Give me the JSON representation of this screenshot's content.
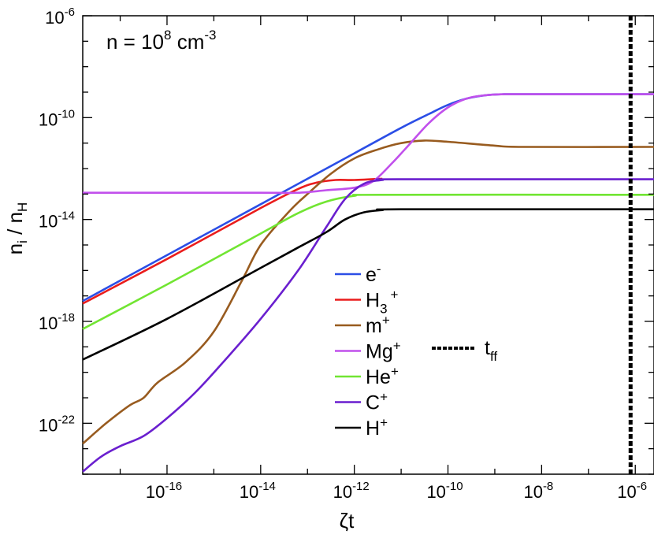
{
  "chart_data": {
    "type": "line",
    "title": "",
    "annotation": {
      "base": "n = 10",
      "exp": "8",
      "unit": " cm",
      "unit_exp": "-3"
    },
    "xlabel": "ζt",
    "ylabel": {
      "n": "n",
      "n_sub": "i",
      "slash": " / ",
      "h": "n",
      "h_sub": "H"
    },
    "x_scale": "log",
    "y_scale": "log",
    "xlim_log10": [
      -17.8,
      -5.6
    ],
    "ylim_log10": [
      -24,
      -6
    ],
    "x_ticks": [
      {
        "exp": -16,
        "base": "10",
        "sup": "-16"
      },
      {
        "exp": -14,
        "base": "10",
        "sup": "-14"
      },
      {
        "exp": -12,
        "base": "10",
        "sup": "-12"
      },
      {
        "exp": -10,
        "base": "10",
        "sup": "-10"
      },
      {
        "exp": -8,
        "base": "10",
        "sup": "-8"
      },
      {
        "exp": -6,
        "base": "10",
        "sup": "-6"
      }
    ],
    "y_ticks": [
      {
        "exp": -6,
        "base": "10",
        "sup": "-6"
      },
      {
        "exp": -10,
        "base": "10",
        "sup": "-10"
      },
      {
        "exp": -14,
        "base": "10",
        "sup": "-14"
      },
      {
        "exp": -18,
        "base": "10",
        "sup": "-18"
      },
      {
        "exp": -22,
        "base": "10",
        "sup": "-22"
      }
    ],
    "series": [
      {
        "name": "e-",
        "label": "e",
        "sup": "-",
        "sub": "",
        "color": "#2b4ee6",
        "points": [
          [
            -17.8,
            -17.2
          ],
          [
            -16,
            -15.4
          ],
          [
            -14,
            -13.4
          ],
          [
            -12,
            -11.4
          ],
          [
            -11,
            -10.4
          ],
          [
            -10.4,
            -9.85
          ],
          [
            -10,
            -9.5
          ],
          [
            -9.6,
            -9.25
          ],
          [
            -9.2,
            -9.12
          ],
          [
            -8.8,
            -9.08
          ],
          [
            -8.4,
            -9.08
          ],
          [
            -5.6,
            -9.08
          ]
        ]
      },
      {
        "name": "H3+",
        "label": "H",
        "sup": "+",
        "sub": "3",
        "color": "#ea1d1d",
        "points": [
          [
            -17.8,
            -17.3
          ],
          [
            -16,
            -15.55
          ],
          [
            -14,
            -13.55
          ],
          [
            -13.2,
            -12.8
          ],
          [
            -12.8,
            -12.55
          ],
          [
            -12.4,
            -12.45
          ],
          [
            -12,
            -12.45
          ],
          [
            -11.4,
            -12.4
          ]
        ]
      },
      {
        "name": "m+",
        "label": "m",
        "sup": "+",
        "sub": "",
        "color": "#985b1f",
        "points": [
          [
            -17.8,
            -22.8
          ],
          [
            -17.3,
            -22
          ],
          [
            -16.8,
            -21.3
          ],
          [
            -16.5,
            -21
          ],
          [
            -16.2,
            -20.4
          ],
          [
            -15.6,
            -19.6
          ],
          [
            -15,
            -18.4
          ],
          [
            -14.4,
            -16.4
          ],
          [
            -14,
            -15
          ],
          [
            -13.4,
            -13.7
          ],
          [
            -13,
            -13
          ],
          [
            -12.5,
            -12.2
          ],
          [
            -12,
            -11.6
          ],
          [
            -11.5,
            -11.25
          ],
          [
            -11,
            -11.0
          ],
          [
            -10.5,
            -10.9
          ],
          [
            -10,
            -10.95
          ],
          [
            -9,
            -11.1
          ],
          [
            -8.4,
            -11.15
          ],
          [
            -5.6,
            -11.15
          ]
        ]
      },
      {
        "name": "Mg+",
        "label": "Mg",
        "sup": "+",
        "sub": "",
        "color": "#c150ec",
        "points": [
          [
            -17.8,
            -12.95
          ],
          [
            -14,
            -12.95
          ],
          [
            -13.2,
            -12.95
          ],
          [
            -12.6,
            -12.85
          ],
          [
            -12,
            -12.75
          ],
          [
            -11.6,
            -12.5
          ],
          [
            -11.2,
            -11.8
          ],
          [
            -10.8,
            -11.0
          ],
          [
            -10.4,
            -10.2
          ],
          [
            -10,
            -9.6
          ],
          [
            -9.6,
            -9.25
          ],
          [
            -9.2,
            -9.12
          ],
          [
            -8.8,
            -9.08
          ],
          [
            -8.4,
            -9.08
          ],
          [
            -5.6,
            -9.08
          ]
        ]
      },
      {
        "name": "He+",
        "label": "He",
        "sup": "+",
        "sub": "",
        "color": "#71e532",
        "points": [
          [
            -17.8,
            -18.3
          ],
          [
            -16,
            -16.55
          ],
          [
            -14,
            -14.55
          ],
          [
            -13.2,
            -13.75
          ],
          [
            -12.6,
            -13.3
          ],
          [
            -12,
            -13.07
          ],
          [
            -11.4,
            -13.03
          ],
          [
            -5.6,
            -13.03
          ]
        ]
      },
      {
        "name": "C+",
        "label": "C",
        "sup": "+",
        "sub": "",
        "color": "#6a1fcf",
        "points": [
          [
            -17.8,
            -23.9
          ],
          [
            -17.4,
            -23.3
          ],
          [
            -17,
            -22.9
          ],
          [
            -16.5,
            -22.5
          ],
          [
            -16,
            -21.8
          ],
          [
            -15.4,
            -20.8
          ],
          [
            -14.8,
            -19.6
          ],
          [
            -14,
            -17.9
          ],
          [
            -13.2,
            -16.0
          ],
          [
            -12.6,
            -14.3
          ],
          [
            -12.2,
            -13.2
          ],
          [
            -11.8,
            -12.6
          ],
          [
            -11.4,
            -12.45
          ],
          [
            -11,
            -12.42
          ],
          [
            -5.6,
            -12.42
          ]
        ]
      },
      {
        "name": "H+",
        "label": "H",
        "sup": "+",
        "sub": "",
        "color": "#000000",
        "points": [
          [
            -17.8,
            -19.5
          ],
          [
            -16,
            -17.9
          ],
          [
            -14,
            -15.9
          ],
          [
            -13.2,
            -15.1
          ],
          [
            -12.6,
            -14.5
          ],
          [
            -12.2,
            -14.0
          ],
          [
            -11.8,
            -13.72
          ],
          [
            -11.4,
            -13.63
          ],
          [
            -11,
            -13.6
          ],
          [
            -5.6,
            -13.6
          ]
        ]
      }
    ],
    "vline": {
      "x_log10": -6.1,
      "label": "t",
      "sub": "ff"
    }
  }
}
